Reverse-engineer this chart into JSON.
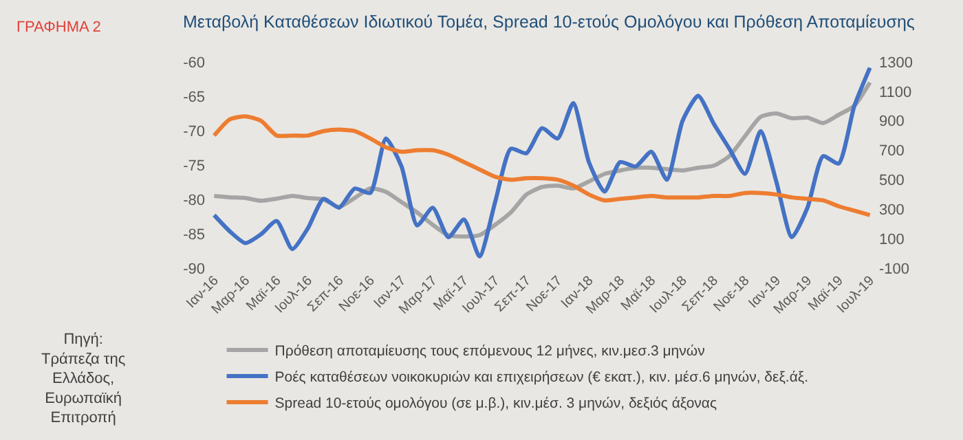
{
  "chart_data": {
    "type": "line",
    "title": "Μεταβολή Καταθέσεων Ιδιωτικού Τομέα, Spread 10-ετούς Ομολόγου και Πρόθεση Αποταμίευσης",
    "categories": [
      "Ιαν-16",
      null,
      "Μαρ-16",
      null,
      "Μαϊ-16",
      null,
      "Ιουλ-16",
      null,
      "Σεπ-16",
      null,
      "Νοε-16",
      null,
      "Ιαν-17",
      null,
      "Μαρ-17",
      null,
      "Μαϊ-17",
      null,
      "Ιουλ-17",
      null,
      "Σεπ-17",
      null,
      "Νοε-17",
      null,
      "Ιαν-18",
      null,
      "Μαρ-18",
      null,
      "Μαϊ-18",
      null,
      "Ιουλ-18",
      null,
      "Σεπ-18",
      null,
      "Νοε-18",
      null,
      "Ιαν-19",
      null,
      "Μαρ-19",
      null,
      "Μαϊ-19",
      null,
      "Ιουλ-19"
    ],
    "series": [
      {
        "name": "Πρόθεση αποταμίευσης τους επόμενους 12 μήνες, κιν.μεσ.3 μηνών",
        "color": "#a5a5a5",
        "values": [
          -79.5,
          -79.7,
          -79.8,
          -80.2,
          -79.9,
          -79.5,
          -79.8,
          -80.0,
          -81.1,
          -79.8,
          -78.4,
          -78.9,
          -80.4,
          -81.9,
          -83.7,
          -85.2,
          -85.4,
          -85.2,
          -83.7,
          -81.9,
          -79.3,
          -78.2,
          -78.0,
          -78.4,
          -77.4,
          -76.3,
          -75.8,
          -75.4,
          -75.4,
          -75.6,
          -75.8,
          -75.4,
          -75.1,
          -73.7,
          -70.8,
          -68.0,
          -67.5,
          -68.2,
          -68.1,
          -68.9,
          -67.7,
          -66.4,
          -63.0
        ]
      },
      {
        "name": "Ροές καταθέσεων νοικοκυριών και επιχειρήσεων (€ εκατ.), κιν. μέσ.6 μηνών, δεξ.άξ.",
        "color": "#4472c4",
        "axis": "y2",
        "values": [
          260,
          150,
          70,
          130,
          220,
          30,
          170,
          370,
          310,
          440,
          410,
          780,
          590,
          190,
          310,
          110,
          230,
          -20,
          350,
          710,
          680,
          850,
          780,
          1020,
          620,
          420,
          620,
          590,
          690,
          500,
          900,
          1070,
          880,
          710,
          540,
          830,
          490,
          110,
          310,
          660,
          610,
          1000,
          1260
        ]
      },
      {
        "name": "Spread 10-ετούς ομολόγου (σε μ.β.), κιν.μέσ. 3 μηνών, δεξιός άξονας",
        "color": "#ed7d31",
        "axis": "y2",
        "values": [
          800,
          910,
          930,
          900,
          800,
          800,
          800,
          830,
          840,
          830,
          780,
          720,
          690,
          700,
          700,
          670,
          620,
          570,
          520,
          500,
          510,
          510,
          500,
          460,
          400,
          360,
          370,
          380,
          390,
          380,
          380,
          380,
          390,
          390,
          410,
          410,
          400,
          380,
          370,
          360,
          320,
          290,
          260
        ]
      }
    ],
    "ylim": [
      -90,
      -60
    ],
    "yticks": [
      -90,
      -85,
      -80,
      -75,
      -70,
      -65,
      -60
    ],
    "y2lim": [
      -100,
      1300
    ],
    "y2ticks": [
      -100,
      100,
      300,
      500,
      700,
      900,
      1100,
      1300
    ],
    "grid": false,
    "legend": "bottom",
    "marker": "none",
    "line_style": "solid",
    "annotations": [
      "ΓΡΑΦΗΜΑ 2",
      "Πηγή:\nΤράπεζα της\nΕλλάδος,\nΕυρωπαϊκή\nΕπιτροπή"
    ]
  }
}
